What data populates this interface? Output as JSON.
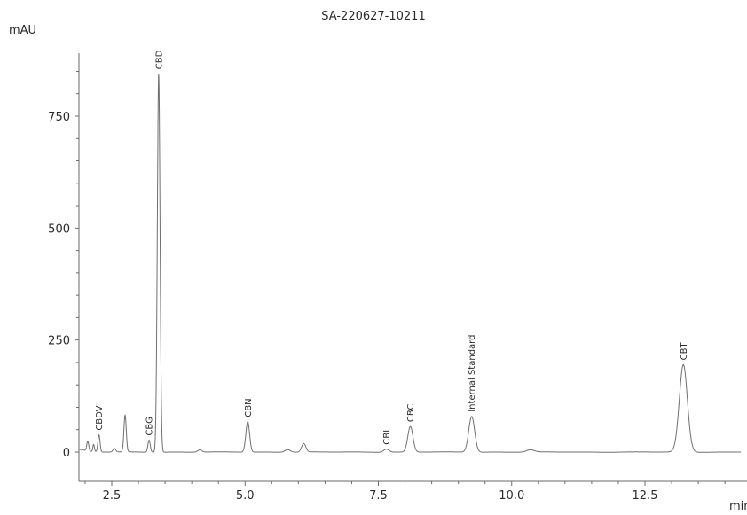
{
  "chart_data": {
    "type": "line",
    "title": "SA-220627-10211",
    "ylabel": "mAU",
    "xlabel": "min",
    "xlim": [
      1.8,
      14.3
    ],
    "ylim": [
      -15,
      885
    ],
    "x_ticks": [
      {
        "value": 2.5,
        "label": "2.5"
      },
      {
        "value": 5.0,
        "label": "5.0"
      },
      {
        "value": 7.5,
        "label": "7.5"
      },
      {
        "value": 10.0,
        "label": "10.0"
      },
      {
        "value": 12.5,
        "label": "12.5"
      }
    ],
    "y_ticks": [
      {
        "value": 0,
        "label": "0"
      },
      {
        "value": 250,
        "label": "250"
      },
      {
        "value": 500,
        "label": "500"
      },
      {
        "value": 750,
        "label": "750"
      }
    ],
    "peaks": [
      {
        "x": 2.05,
        "y": 22,
        "w": 0.018
      },
      {
        "x": 2.16,
        "y": 16,
        "w": 0.015
      },
      {
        "x": 2.26,
        "y": 38,
        "w": 0.02,
        "label": "CBDV"
      },
      {
        "x": 2.55,
        "y": 8,
        "w": 0.025
      },
      {
        "x": 2.75,
        "y": 82,
        "w": 0.022
      },
      {
        "x": 3.2,
        "y": 27,
        "w": 0.022,
        "label": "CBG"
      },
      {
        "x": 3.38,
        "y": 845,
        "w": 0.025,
        "label": "CBD"
      },
      {
        "x": 4.15,
        "y": 5,
        "w": 0.04
      },
      {
        "x": 5.05,
        "y": 68,
        "w": 0.035,
        "label": "CBN"
      },
      {
        "x": 5.8,
        "y": 6,
        "w": 0.05
      },
      {
        "x": 6.1,
        "y": 19,
        "w": 0.04
      },
      {
        "x": 7.65,
        "y": 7,
        "w": 0.05,
        "label": "CBL"
      },
      {
        "x": 8.1,
        "y": 57,
        "w": 0.048,
        "label": "CBC"
      },
      {
        "x": 9.25,
        "y": 80,
        "w": 0.055,
        "label": "Internal Standard"
      },
      {
        "x": 10.35,
        "y": 5,
        "w": 0.07
      },
      {
        "x": 13.22,
        "y": 195,
        "w": 0.075,
        "label": "CBT"
      }
    ]
  }
}
